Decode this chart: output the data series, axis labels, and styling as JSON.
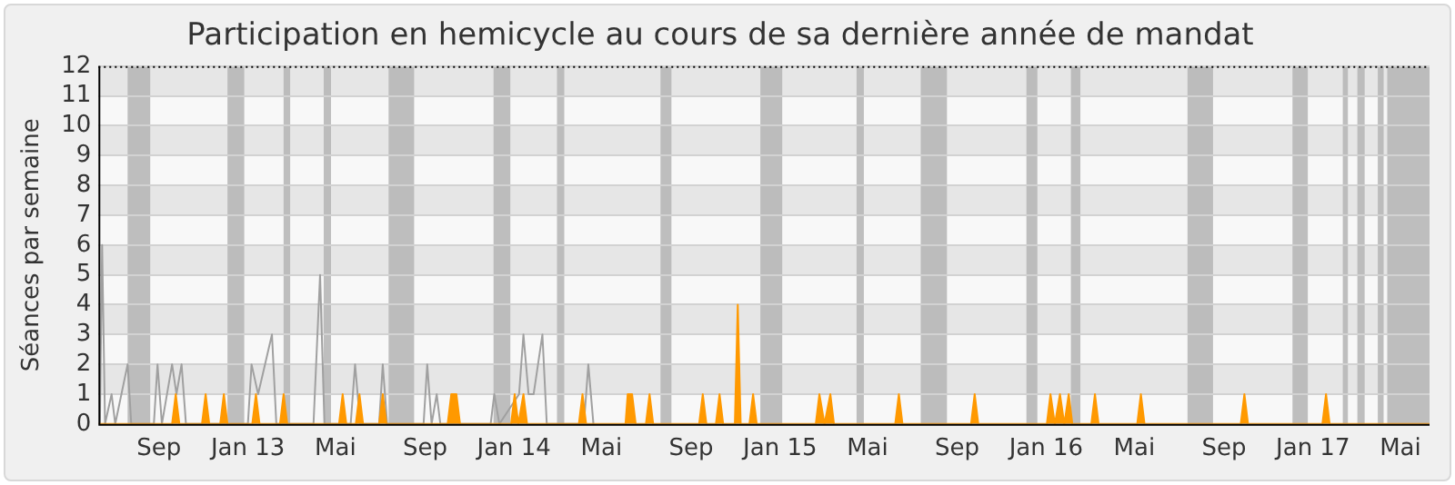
{
  "chart_data": {
    "type": "area",
    "title": "Participation en hemicycle au cours de sa dernière année de mandat",
    "ylabel": "Séances par semaine",
    "xlim": [
      "2012-06-10",
      "2017-06-10"
    ],
    "xticks": [
      {
        "value": "2012-09-01",
        "label": "Sep"
      },
      {
        "value": "2013-01-01",
        "label": "Jan 13"
      },
      {
        "value": "2013-05-01",
        "label": "Mai"
      },
      {
        "value": "2013-09-01",
        "label": "Sep"
      },
      {
        "value": "2014-01-01",
        "label": "Jan 14"
      },
      {
        "value": "2014-05-01",
        "label": "Mai"
      },
      {
        "value": "2014-09-01",
        "label": "Sep"
      },
      {
        "value": "2015-01-01",
        "label": "Jan 15"
      },
      {
        "value": "2015-05-01",
        "label": "Mai"
      },
      {
        "value": "2015-09-01",
        "label": "Sep"
      },
      {
        "value": "2016-01-01",
        "label": "Jan 16"
      },
      {
        "value": "2016-05-01",
        "label": "Mai"
      },
      {
        "value": "2016-09-01",
        "label": "Sep"
      },
      {
        "value": "2017-01-01",
        "label": "Jan 17"
      },
      {
        "value": "2017-05-01",
        "label": "Mai"
      }
    ],
    "ylim": [
      0,
      12
    ],
    "yticks": [
      0,
      1,
      2,
      3,
      4,
      5,
      6,
      7,
      8,
      9,
      10,
      11,
      12
    ],
    "grid": "y",
    "bands": [
      {
        "axis": "x",
        "from": "2012-07-20",
        "to": "2012-08-20",
        "color": "#b4b4b4"
      },
      {
        "axis": "x",
        "from": "2012-12-04",
        "to": "2012-12-27",
        "color": "#b4b4b4"
      },
      {
        "axis": "x",
        "from": "2013-02-19",
        "to": "2013-02-28",
        "color": "#b4b4b4"
      },
      {
        "axis": "x",
        "from": "2013-04-15",
        "to": "2013-04-25",
        "color": "#b4b4b4"
      },
      {
        "axis": "x",
        "from": "2013-07-13",
        "to": "2013-08-17",
        "color": "#b4b4b4"
      },
      {
        "axis": "x",
        "from": "2013-12-04",
        "to": "2013-12-27",
        "color": "#b4b4b4"
      },
      {
        "axis": "x",
        "from": "2014-03-01",
        "to": "2014-03-11",
        "color": "#b4b4b4"
      },
      {
        "axis": "x",
        "from": "2014-07-21",
        "to": "2014-08-05",
        "color": "#b4b4b4"
      },
      {
        "axis": "x",
        "from": "2014-12-05",
        "to": "2015-01-04",
        "color": "#b4b4b4"
      },
      {
        "axis": "x",
        "from": "2015-04-16",
        "to": "2015-04-26",
        "color": "#b4b4b4"
      },
      {
        "axis": "x",
        "from": "2015-07-13",
        "to": "2015-08-18",
        "color": "#b4b4b4"
      },
      {
        "axis": "x",
        "from": "2015-12-05",
        "to": "2015-12-20",
        "color": "#b4b4b4"
      },
      {
        "axis": "x",
        "from": "2016-02-04",
        "to": "2016-02-17",
        "color": "#b4b4b4"
      },
      {
        "axis": "x",
        "from": "2016-07-13",
        "to": "2016-08-17",
        "color": "#b4b4b4"
      },
      {
        "axis": "x",
        "from": "2016-12-04",
        "to": "2016-12-25",
        "color": "#b4b4b4"
      },
      {
        "axis": "x",
        "from": "2017-02-11",
        "to": "2017-02-18",
        "color": "#b4b4b4"
      },
      {
        "axis": "x",
        "from": "2017-03-03",
        "to": "2017-03-13",
        "color": "#b4b4b4"
      },
      {
        "axis": "x",
        "from": "2017-03-31",
        "to": "2017-04-08",
        "color": "#b4b4b4"
      },
      {
        "axis": "x",
        "from": "2017-04-13",
        "to": "2017-06-10",
        "color": "#b4b4b4"
      }
    ],
    "series": [
      {
        "type": "line",
        "color": "#a0a0a0",
        "x": [
          "2012-06-12",
          "2012-06-15",
          "2012-06-19",
          "2012-06-28",
          "2012-07-03",
          "2012-07-20",
          "2012-07-25",
          "2012-08-25",
          "2012-08-30",
          "2012-09-05",
          "2012-09-19",
          "2012-09-25",
          "2012-10-02",
          "2012-10-08",
          "2013-01-01",
          "2013-01-06",
          "2013-01-15",
          "2013-02-03",
          "2013-02-09",
          "2013-04-01",
          "2013-04-10",
          "2013-04-16",
          "2013-05-22",
          "2013-05-28",
          "2013-06-04",
          "2013-06-30",
          "2013-07-05",
          "2013-07-11",
          "2013-08-30",
          "2013-09-04",
          "2013-09-10",
          "2013-09-17",
          "2013-09-22",
          "2013-11-30",
          "2013-12-05",
          "2013-12-12",
          "2014-01-08",
          "2014-01-14",
          "2014-01-21",
          "2014-01-28",
          "2014-02-09",
          "2014-02-15",
          "2014-04-07",
          "2014-04-13",
          "2014-04-20"
        ],
        "values": [
          0,
          6,
          0,
          1,
          0,
          2,
          0,
          0,
          2,
          0,
          2,
          1,
          2,
          0,
          0,
          2,
          1,
          3,
          0,
          0,
          5,
          0,
          0,
          2,
          0,
          0,
          2,
          0,
          0,
          2,
          0,
          1,
          0,
          0,
          1,
          0,
          1,
          3,
          1,
          1,
          3,
          0,
          0,
          2,
          0
        ]
      },
      {
        "color": "#ff9900",
        "x": [
          "2012-06-10",
          "2012-09-19",
          "2012-09-24",
          "2012-09-29",
          "2012-10-30",
          "2012-11-04",
          "2012-11-09",
          "2012-11-24",
          "2012-11-29",
          "2012-12-04",
          "2013-01-07",
          "2013-01-12",
          "2013-01-17",
          "2013-02-14",
          "2013-02-19",
          "2013-02-24",
          "2013-05-06",
          "2013-05-11",
          "2013-05-16",
          "2013-05-29",
          "2013-06-03",
          "2013-06-08",
          "2013-06-30",
          "2013-07-05",
          "2013-07-10",
          "2013-10-02",
          "2013-10-07",
          "2013-10-14",
          "2013-10-19",
          "2013-12-28",
          "2014-01-02",
          "2014-01-07",
          "2014-01-09",
          "2014-01-14",
          "2014-01-19",
          "2014-03-31",
          "2014-04-05",
          "2014-04-10",
          "2014-06-03",
          "2014-06-06",
          "2014-06-12",
          "2014-06-17",
          "2014-07-01",
          "2014-07-06",
          "2014-07-11",
          "2014-09-12",
          "2014-09-17",
          "2014-09-22",
          "2014-10-05",
          "2014-10-10",
          "2014-10-15",
          "2014-10-31",
          "2014-11-04",
          "2014-11-08",
          "2014-11-20",
          "2014-11-25",
          "2014-11-30",
          "2015-02-19",
          "2015-02-24",
          "2015-03-03",
          "2015-03-11",
          "2015-03-16",
          "2015-06-08",
          "2015-06-13",
          "2015-06-18",
          "2015-09-20",
          "2015-09-25",
          "2015-09-30",
          "2016-01-02",
          "2016-01-07",
          "2016-01-13",
          "2016-01-20",
          "2016-01-26",
          "2016-02-01",
          "2016-02-06",
          "2016-03-03",
          "2016-03-08",
          "2016-03-13",
          "2016-05-05",
          "2016-05-10",
          "2016-05-15",
          "2016-09-24",
          "2016-09-29",
          "2016-10-04",
          "2017-01-14",
          "2017-01-19",
          "2017-01-24",
          "2017-06-10"
        ],
        "values": [
          0,
          0,
          1,
          0,
          0,
          1,
          0,
          0,
          1,
          0,
          0,
          1,
          0,
          0,
          1,
          0,
          0,
          1,
          0,
          0,
          1,
          0,
          0,
          1,
          0,
          0,
          1,
          1,
          0,
          0,
          1,
          0,
          0,
          1,
          0,
          0,
          1,
          0,
          0,
          1,
          1,
          0,
          0,
          1,
          0,
          0,
          1,
          0,
          0,
          1,
          0,
          0,
          4,
          0,
          0,
          1,
          0,
          0,
          1,
          0,
          1,
          0,
          0,
          1,
          0,
          0,
          1,
          0,
          0,
          1,
          0,
          1,
          0,
          1,
          0,
          0,
          1,
          0,
          0,
          1,
          0,
          0,
          1,
          0,
          0,
          1,
          0,
          0
        ]
      }
    ]
  }
}
